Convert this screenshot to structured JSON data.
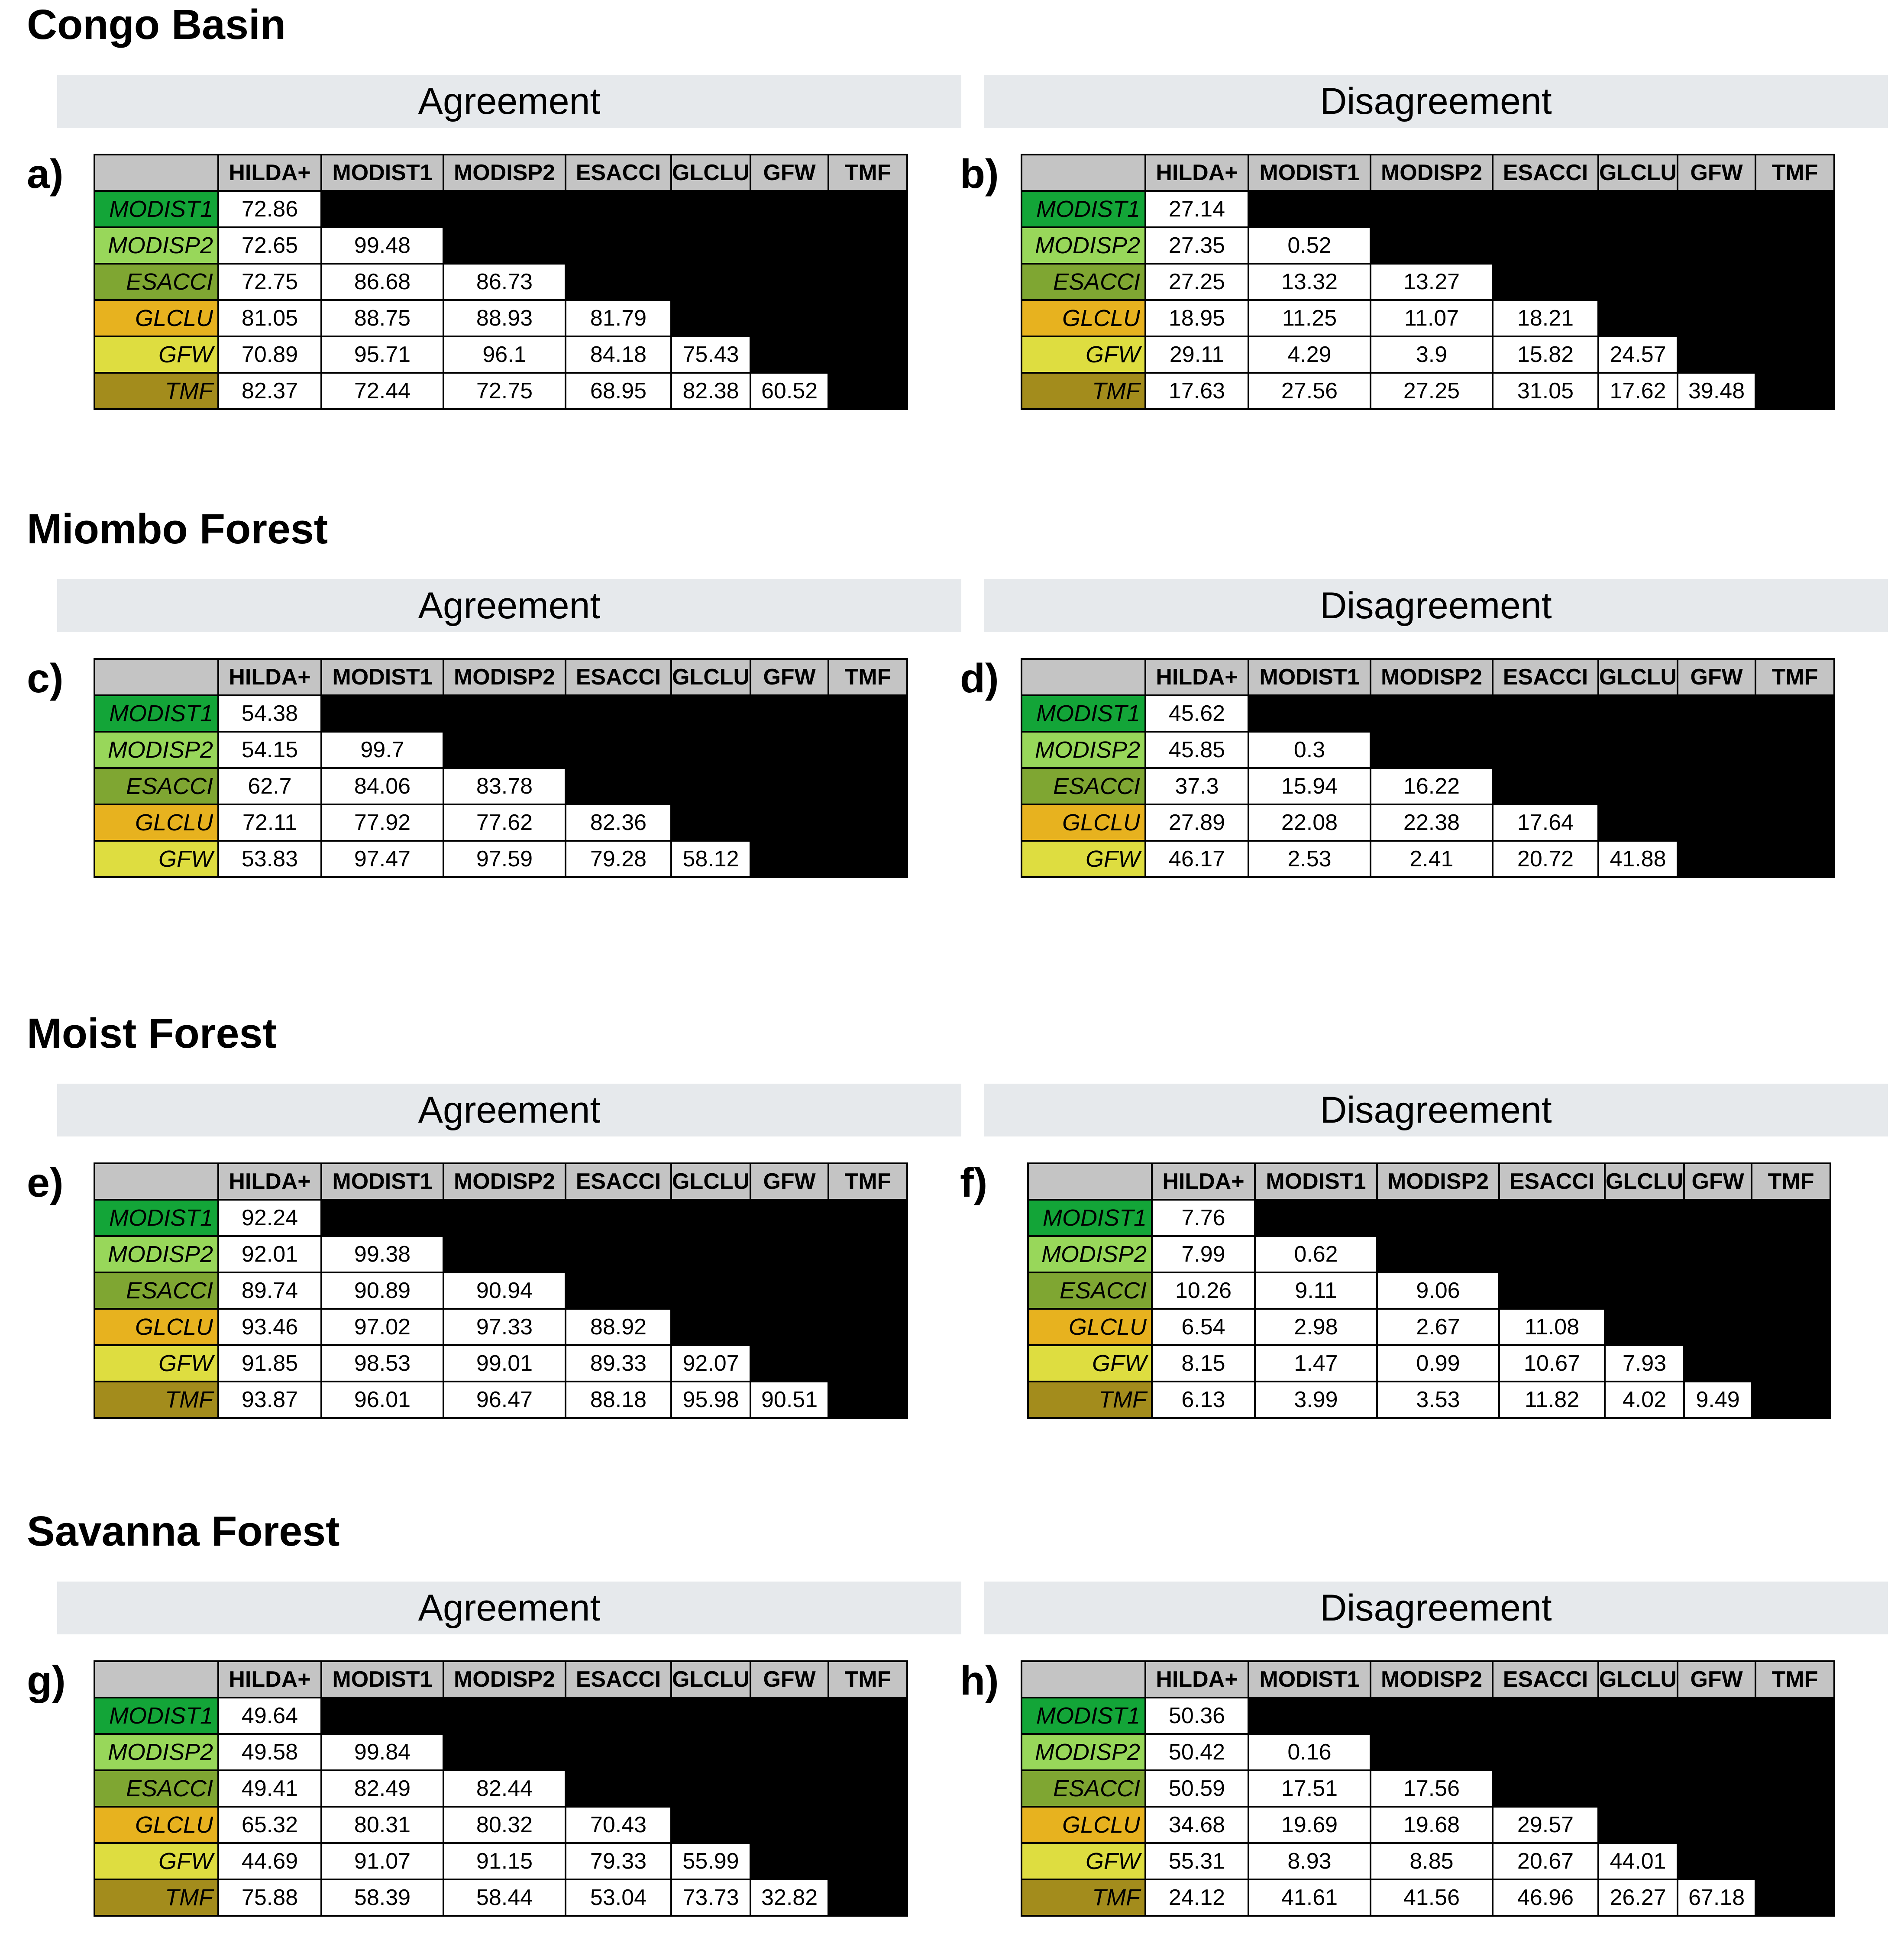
{
  "columns": [
    "HILDA+",
    "MODIST1",
    "MODISP2",
    "ESACCI",
    "GLCLU",
    "GFW",
    "TMF"
  ],
  "row_colors": {
    "MODIST1": "#13a538",
    "MODISP2": "#98d75a",
    "ESACCI": "#7fa632",
    "GLCLU": "#e7b21f",
    "GFW": "#dedd40",
    "TMF": "#a38c1c"
  },
  "sections": {
    "agreement": "Agreement",
    "disagreement": "Disagreement"
  },
  "regions": [
    {
      "title": "Congo Basin",
      "panels": [
        {
          "label": "a)",
          "rows": [
            {
              "name": "MODIST1",
              "values": [
                "72.86"
              ]
            },
            {
              "name": "MODISP2",
              "values": [
                "72.65",
                "99.48"
              ]
            },
            {
              "name": "ESACCI",
              "values": [
                "72.75",
                "86.68",
                "86.73"
              ]
            },
            {
              "name": "GLCLU",
              "values": [
                "81.05",
                "88.75",
                "88.93",
                "81.79"
              ]
            },
            {
              "name": "GFW",
              "values": [
                "70.89",
                "95.71",
                "96.1",
                "84.18",
                "75.43"
              ]
            },
            {
              "name": "TMF",
              "values": [
                "82.37",
                "72.44",
                "72.75",
                "68.95",
                "82.38",
                "60.52"
              ]
            }
          ]
        },
        {
          "label": "b)",
          "rows": [
            {
              "name": "MODIST1",
              "values": [
                "27.14"
              ]
            },
            {
              "name": "MODISP2",
              "values": [
                "27.35",
                "0.52"
              ]
            },
            {
              "name": "ESACCI",
              "values": [
                "27.25",
                "13.32",
                "13.27"
              ]
            },
            {
              "name": "GLCLU",
              "values": [
                "18.95",
                "11.25",
                "11.07",
                "18.21"
              ]
            },
            {
              "name": "GFW",
              "values": [
                "29.11",
                "4.29",
                "3.9",
                "15.82",
                "24.57"
              ]
            },
            {
              "name": "TMF",
              "values": [
                "17.63",
                "27.56",
                "27.25",
                "31.05",
                "17.62",
                "39.48"
              ]
            }
          ]
        }
      ]
    },
    {
      "title": "Miombo Forest",
      "panels": [
        {
          "label": "c)",
          "rows": [
            {
              "name": "MODIST1",
              "values": [
                "54.38"
              ]
            },
            {
              "name": "MODISP2",
              "values": [
                "54.15",
                "99.7"
              ]
            },
            {
              "name": "ESACCI",
              "values": [
                "62.7",
                "84.06",
                "83.78"
              ]
            },
            {
              "name": "GLCLU",
              "values": [
                "72.11",
                "77.92",
                "77.62",
                "82.36"
              ]
            },
            {
              "name": "GFW",
              "values": [
                "53.83",
                "97.47",
                "97.59",
                "79.28",
                "58.12"
              ]
            }
          ]
        },
        {
          "label": "d)",
          "rows": [
            {
              "name": "MODIST1",
              "values": [
                "45.62"
              ]
            },
            {
              "name": "MODISP2",
              "values": [
                "45.85",
                "0.3"
              ]
            },
            {
              "name": "ESACCI",
              "values": [
                "37.3",
                "15.94",
                "16.22"
              ]
            },
            {
              "name": "GLCLU",
              "values": [
                "27.89",
                "22.08",
                "22.38",
                "17.64"
              ]
            },
            {
              "name": "GFW",
              "values": [
                "46.17",
                "2.53",
                "2.41",
                "20.72",
                "41.88"
              ]
            }
          ]
        }
      ]
    },
    {
      "title": "Moist Forest",
      "panels": [
        {
          "label": "e)",
          "rows": [
            {
              "name": "MODIST1",
              "values": [
                "92.24"
              ]
            },
            {
              "name": "MODISP2",
              "values": [
                "92.01",
                "99.38"
              ]
            },
            {
              "name": "ESACCI",
              "values": [
                "89.74",
                "90.89",
                "90.94"
              ]
            },
            {
              "name": "GLCLU",
              "values": [
                "93.46",
                "97.02",
                "97.33",
                "88.92"
              ]
            },
            {
              "name": "GFW",
              "values": [
                "91.85",
                "98.53",
                "99.01",
                "89.33",
                "92.07"
              ]
            },
            {
              "name": "TMF",
              "values": [
                "93.87",
                "96.01",
                "96.47",
                "88.18",
                "95.98",
                "90.51"
              ]
            }
          ]
        },
        {
          "label": "f)",
          "rows": [
            {
              "name": "MODIST1",
              "values": [
                "7.76"
              ]
            },
            {
              "name": "MODISP2",
              "values": [
                "7.99",
                "0.62"
              ]
            },
            {
              "name": "ESACCI",
              "values": [
                "10.26",
                "9.11",
                "9.06"
              ]
            },
            {
              "name": "GLCLU",
              "values": [
                "6.54",
                "2.98",
                "2.67",
                "11.08"
              ]
            },
            {
              "name": "GFW",
              "values": [
                "8.15",
                "1.47",
                "0.99",
                "10.67",
                "7.93"
              ]
            },
            {
              "name": "TMF",
              "values": [
                "6.13",
                "3.99",
                "3.53",
                "11.82",
                "4.02",
                "9.49"
              ]
            }
          ]
        }
      ]
    },
    {
      "title": "Savanna Forest",
      "panels": [
        {
          "label": "g)",
          "rows": [
            {
              "name": "MODIST1",
              "values": [
                "49.64"
              ]
            },
            {
              "name": "MODISP2",
              "values": [
                "49.58",
                "99.84"
              ]
            },
            {
              "name": "ESACCI",
              "values": [
                "49.41",
                "82.49",
                "82.44"
              ]
            },
            {
              "name": "GLCLU",
              "values": [
                "65.32",
                "80.31",
                "80.32",
                "70.43"
              ]
            },
            {
              "name": "GFW",
              "values": [
                "44.69",
                "91.07",
                "91.15",
                "79.33",
                "55.99"
              ]
            },
            {
              "name": "TMF",
              "values": [
                "75.88",
                "58.39",
                "58.44",
                "53.04",
                "73.73",
                "32.82"
              ]
            }
          ]
        },
        {
          "label": "h)",
          "rows": [
            {
              "name": "MODIST1",
              "values": [
                "50.36"
              ]
            },
            {
              "name": "MODISP2",
              "values": [
                "50.42",
                "0.16"
              ]
            },
            {
              "name": "ESACCI",
              "values": [
                "50.59",
                "17.51",
                "17.56"
              ]
            },
            {
              "name": "GLCLU",
              "values": [
                "34.68",
                "19.69",
                "19.68",
                "29.57"
              ]
            },
            {
              "name": "GFW",
              "values": [
                "55.31",
                "8.93",
                "8.85",
                "20.67",
                "44.01"
              ]
            },
            {
              "name": "TMF",
              "values": [
                "24.12",
                "41.61",
                "41.56",
                "46.96",
                "26.27",
                "67.18"
              ]
            }
          ]
        }
      ]
    }
  ]
}
